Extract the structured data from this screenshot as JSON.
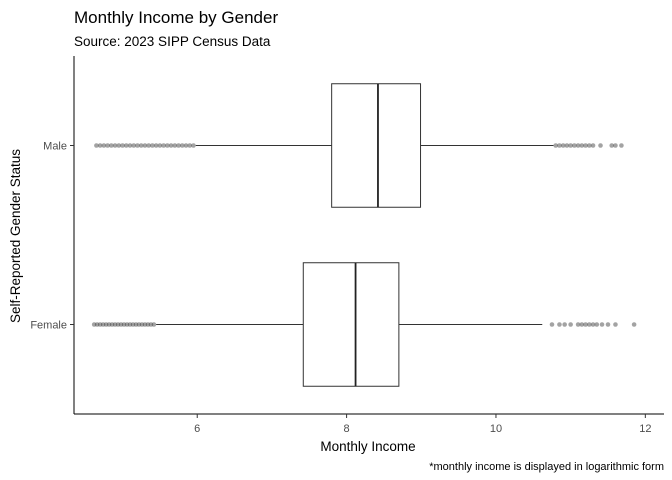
{
  "chart_data": {
    "type": "boxplot",
    "orientation": "horizontal",
    "title": "Monthly Income by Gender",
    "subtitle": "Source: 2023 SIPP Census Data",
    "xlabel": "Monthly Income",
    "ylabel": "Self-Reported Gender Status",
    "caption": "*monthly income is displayed in logarithmic form",
    "xlim": [
      4.35,
      12.25
    ],
    "xticks": [
      6,
      8,
      10,
      12
    ],
    "categories": [
      "Male",
      "Female"
    ],
    "series": [
      {
        "name": "Male",
        "whisker_low": 5.98,
        "q1": 7.8,
        "median": 8.42,
        "q3": 8.99,
        "whisker_high": 10.77,
        "outliers": [
          4.65,
          4.7,
          4.75,
          4.8,
          4.85,
          4.9,
          4.95,
          5.0,
          5.05,
          5.1,
          5.15,
          5.2,
          5.25,
          5.3,
          5.35,
          5.4,
          5.45,
          5.5,
          5.55,
          5.6,
          5.65,
          5.7,
          5.75,
          5.8,
          5.85,
          5.9,
          5.95,
          10.8,
          10.85,
          10.9,
          10.95,
          11.0,
          11.05,
          11.1,
          11.15,
          11.2,
          11.25,
          11.3,
          11.4,
          11.55,
          11.6,
          11.68
        ]
      },
      {
        "name": "Female",
        "whisker_low": 5.45,
        "q1": 7.42,
        "median": 8.12,
        "q3": 8.7,
        "whisker_high": 10.62,
        "outliers": [
          4.62,
          4.66,
          4.7,
          4.74,
          4.78,
          4.82,
          4.86,
          4.9,
          4.94,
          4.98,
          5.02,
          5.06,
          5.1,
          5.14,
          5.18,
          5.22,
          5.26,
          5.3,
          5.34,
          5.38,
          5.42,
          10.75,
          10.85,
          10.92,
          11.0,
          11.1,
          11.15,
          11.2,
          11.25,
          11.3,
          11.35,
          11.42,
          11.5,
          11.6,
          11.85
        ]
      }
    ]
  }
}
